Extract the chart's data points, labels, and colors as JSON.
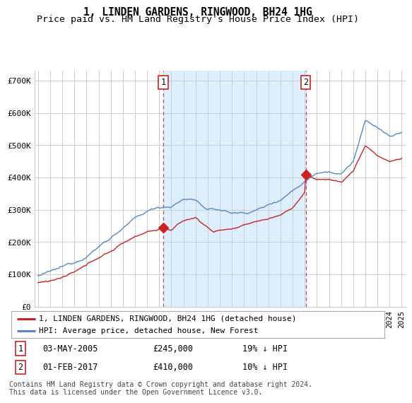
{
  "title": "1, LINDEN GARDENS, RINGWOOD, BH24 1HG",
  "subtitle": "Price paid vs. HM Land Registry's House Price Index (HPI)",
  "ylabel_ticks": [
    "£0",
    "£100K",
    "£200K",
    "£300K",
    "£400K",
    "£500K",
    "£600K",
    "£700K"
  ],
  "ytick_values": [
    0,
    100000,
    200000,
    300000,
    400000,
    500000,
    600000,
    700000
  ],
  "ylim": [
    0,
    730000
  ],
  "xlim_start": 1994.7,
  "xlim_end": 2025.3,
  "sale1_x": 2005.33,
  "sale1_y": 245000,
  "sale2_x": 2017.08,
  "sale2_y": 410000,
  "sale1_date": "03-MAY-2005",
  "sale1_price": "£245,000",
  "sale1_hpi": "19% ↓ HPI",
  "sale2_date": "01-FEB-2017",
  "sale2_price": "£410,000",
  "sale2_hpi": "10% ↓ HPI",
  "line1_color": "#cc2222",
  "line2_color": "#5588cc",
  "shade_color": "#ddeeff",
  "vline_color": "#cc4444",
  "legend1_label": "1, LINDEN GARDENS, RINGWOOD, BH24 1HG (detached house)",
  "legend2_label": "HPI: Average price, detached house, New Forest",
  "footnote": "Contains HM Land Registry data © Crown copyright and database right 2024.\nThis data is licensed under the Open Government Licence v3.0.",
  "bg_color": "#ffffff",
  "grid_color": "#cccccc",
  "title_fontsize": 10.5,
  "subtitle_fontsize": 9.5,
  "tick_fontsize": 8,
  "legend_fontsize": 8,
  "table_fontsize": 8.5,
  "footnote_fontsize": 7
}
